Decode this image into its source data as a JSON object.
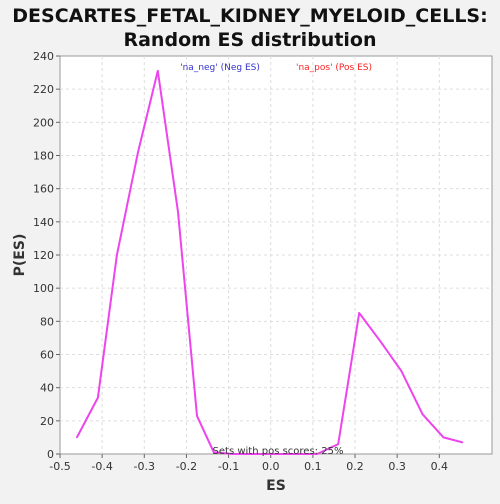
{
  "chart_data": {
    "type": "line",
    "title_lines": [
      "DESCARTES_FETAL_KIDNEY_MYELOID_CELLS:",
      "Random ES distribution"
    ],
    "xlabel": "ES",
    "ylabel": "P(ES)",
    "xlim": [
      -0.5,
      0.5
    ],
    "ylim": [
      0,
      240
    ],
    "x_ticks": [
      -0.5,
      -0.4,
      -0.3,
      -0.2,
      -0.1,
      0.0,
      0.1,
      0.2,
      0.3,
      0.4
    ],
    "x_tick_labels": [
      "-0.5",
      "-0.4",
      "-0.3",
      "-0.2",
      "-0.1",
      "0.0",
      "0.1",
      "0.2",
      "0.3",
      "0.4"
    ],
    "y_ticks": [
      0,
      20,
      40,
      60,
      80,
      100,
      120,
      140,
      160,
      180,
      200,
      220,
      240
    ],
    "y_tick_labels": [
      "0",
      "20",
      "40",
      "60",
      "80",
      "100",
      "120",
      "140",
      "160",
      "180",
      "200",
      "220",
      "240"
    ],
    "grid": true,
    "legend": [
      {
        "label": "'na_neg' (Neg ES)",
        "color": "#3333cc"
      },
      {
        "label": "'na_pos' (Pos ES)",
        "color": "#ff2222"
      }
    ],
    "series": [
      {
        "name": "random ES",
        "color": "#ee44ee",
        "x": [
          -0.46,
          -0.41,
          -0.365,
          -0.315,
          -0.268,
          -0.22,
          -0.175,
          -0.135,
          -0.09,
          -0.04,
          0.01,
          0.06,
          0.11,
          0.16,
          0.21,
          0.26,
          0.31,
          0.36,
          0.41,
          0.455
        ],
        "y": [
          10,
          34,
          120,
          182,
          231,
          146,
          23,
          1,
          0,
          0,
          0,
          0,
          0,
          6,
          85,
          68,
          50,
          24,
          10,
          7
        ]
      }
    ],
    "annotation": "Sets with pos scores: 25%"
  }
}
